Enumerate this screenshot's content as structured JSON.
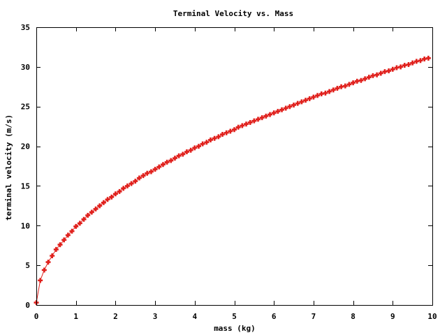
{
  "chart_data": {
    "type": "line",
    "title": "Terminal Velocity vs. Mass",
    "xlabel": "mass (kg)",
    "ylabel": "terminal velocity (m/s)",
    "xlim": [
      0,
      10
    ],
    "ylim": [
      0,
      35
    ],
    "xticks": [
      0,
      1,
      2,
      3,
      4,
      5,
      6,
      7,
      8,
      9,
      10
    ],
    "yticks": [
      0,
      5,
      10,
      15,
      20,
      25,
      30,
      35
    ],
    "grid": false,
    "legend": "none",
    "series": [
      {
        "color": "#e0201c",
        "marker": "plus",
        "x": [
          0,
          0.1,
          0.2,
          0.3,
          0.4,
          0.5,
          0.6,
          0.7,
          0.8,
          0.9,
          1.0,
          1.1,
          1.2,
          1.3,
          1.4,
          1.5,
          1.6,
          1.7,
          1.8,
          1.9,
          2.0,
          2.1,
          2.2,
          2.3,
          2.4,
          2.5,
          2.6,
          2.7,
          2.8,
          2.9,
          3.0,
          3.1,
          3.2,
          3.3,
          3.4,
          3.5,
          3.6,
          3.7,
          3.8,
          3.9,
          4.0,
          4.1,
          4.2,
          4.3,
          4.4,
          4.5,
          4.6,
          4.7,
          4.8,
          4.9,
          5.0,
          5.1,
          5.2,
          5.3,
          5.4,
          5.5,
          5.6,
          5.7,
          5.8,
          5.9,
          6.0,
          6.1,
          6.2,
          6.3,
          6.4,
          6.5,
          6.6,
          6.7,
          6.8,
          6.9,
          7.0,
          7.1,
          7.2,
          7.3,
          7.4,
          7.5,
          7.6,
          7.7,
          7.8,
          7.9,
          8.0,
          8.1,
          8.2,
          8.3,
          8.4,
          8.5,
          8.6,
          8.7,
          8.8,
          8.9,
          9.0,
          9.1,
          9.2,
          9.3,
          9.4,
          9.5,
          9.6,
          9.7,
          9.8,
          9.9
        ],
        "y": [
          0.3,
          3.1,
          4.4,
          5.4,
          6.2,
          7.0,
          7.6,
          8.2,
          8.8,
          9.3,
          9.9,
          10.3,
          10.8,
          11.3,
          11.7,
          12.1,
          12.5,
          12.9,
          13.3,
          13.6,
          14.0,
          14.3,
          14.7,
          15.0,
          15.3,
          15.6,
          16.0,
          16.3,
          16.6,
          16.8,
          17.1,
          17.4,
          17.7,
          18.0,
          18.2,
          18.5,
          18.8,
          19.0,
          19.3,
          19.5,
          19.8,
          20.0,
          20.3,
          20.5,
          20.8,
          21.0,
          21.2,
          21.5,
          21.7,
          21.9,
          22.1,
          22.4,
          22.6,
          22.8,
          23.0,
          23.2,
          23.4,
          23.6,
          23.8,
          24.0,
          24.2,
          24.4,
          24.6,
          24.8,
          25.0,
          25.2,
          25.4,
          25.6,
          25.8,
          26.0,
          26.2,
          26.4,
          26.6,
          26.7,
          26.9,
          27.1,
          27.3,
          27.5,
          27.6,
          27.8,
          28.0,
          28.2,
          28.3,
          28.5,
          28.7,
          28.9,
          29.0,
          29.2,
          29.4,
          29.5,
          29.7,
          29.9,
          30.0,
          30.2,
          30.3,
          30.5,
          30.7,
          30.8,
          31.0,
          31.1
        ]
      }
    ]
  }
}
